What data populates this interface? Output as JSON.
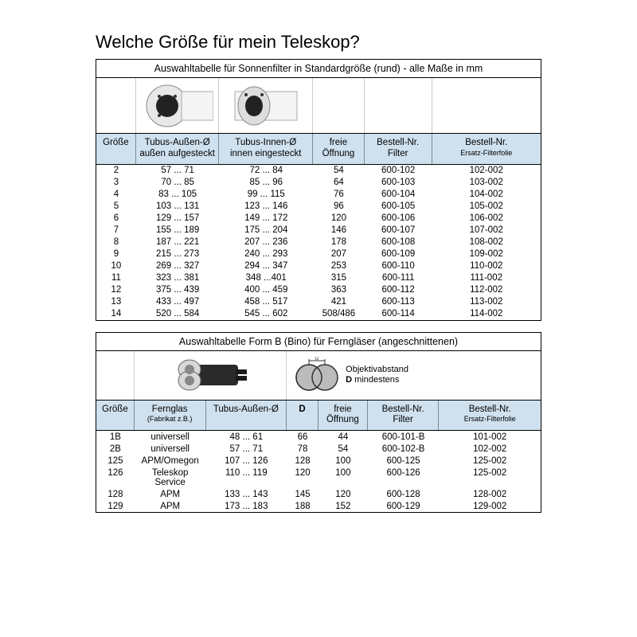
{
  "title": "Welche Größe für mein Teleskop?",
  "table1": {
    "caption": "Auswahltabelle für Sonnenfilter in Standardgröße (rund) - alle Maße in mm",
    "headers": {
      "c0": "Größe",
      "c1a": "Tubus-Außen-Ø",
      "c1b": "außen aufgesteckt",
      "c2a": "Tubus-Innen-Ø",
      "c2b": "innen eingesteckt",
      "c3a": "freie",
      "c3b": "Öffnung",
      "c4a": "Bestell-Nr.",
      "c4b": "Filter",
      "c5a": "Bestell-Nr.",
      "c5b": "Ersatz-Filterfolie"
    },
    "rows": [
      {
        "c0": "2",
        "c1": "57 ... 71",
        "c2": "72 ... 84",
        "c3": "54",
        "c4": "600-102",
        "c5": "102-002"
      },
      {
        "c0": "3",
        "c1": "70 ... 85",
        "c2": "85 ... 96",
        "c3": "64",
        "c4": "600-103",
        "c5": "103-002"
      },
      {
        "c0": "4",
        "c1": "83 ... 105",
        "c2": "99 ... 115",
        "c3": "76",
        "c4": "600-104",
        "c5": "104-002"
      },
      {
        "c0": "5",
        "c1": "103 ... 131",
        "c2": "123 ... 146",
        "c3": "96",
        "c4": "600-105",
        "c5": "105-002"
      },
      {
        "c0": "6",
        "c1": "129 ... 157",
        "c2": "149 ... 172",
        "c3": "120",
        "c4": "600-106",
        "c5": "106-002"
      },
      {
        "c0": "7",
        "c1": "155 ... 189",
        "c2": "175 ... 204",
        "c3": "146",
        "c4": "600-107",
        "c5": "107-002"
      },
      {
        "c0": "8",
        "c1": "187 ... 221",
        "c2": "207 ... 236",
        "c3": "178",
        "c4": "600-108",
        "c5": "108-002"
      },
      {
        "c0": "9",
        "c1": "215 ... 273",
        "c2": "240 ... 293",
        "c3": "207",
        "c4": "600-109",
        "c5": "109-002"
      },
      {
        "c0": "10",
        "c1": "269 ... 327",
        "c2": "294 ... 347",
        "c3": "253",
        "c4": "600-110",
        "c5": "110-002"
      },
      {
        "c0": "11",
        "c1": "323 ... 381",
        "c2": "348 ...401",
        "c3": "315",
        "c4": "600-111",
        "c5": "111-002"
      },
      {
        "c0": "12",
        "c1": "375 ... 439",
        "c2": "400 ... 459",
        "c3": "363",
        "c4": "600-112",
        "c5": "112-002"
      },
      {
        "c0": "13",
        "c1": "433 ... 497",
        "c2": "458 ... 517",
        "c3": "421",
        "c4": "600-113",
        "c5": "113-002"
      },
      {
        "c0": "14",
        "c1": "520 ... 584",
        "c2": "545 ... 602",
        "c3": "508/486",
        "c4": "600-114",
        "c5": "114-002"
      }
    ]
  },
  "table2": {
    "caption": "Auswahltabelle Form B (Bino) für Ferngläser  (angeschnittenen)",
    "diagram_label_title": "Objektivabstand",
    "diagram_label_sub": "D mindestens",
    "headers": {
      "c0": "Größe",
      "c1a": "Fernglas",
      "c1b": "(Fabrikat z.B.)",
      "c2": "Tubus-Außen-Ø",
      "c3": "D",
      "c4a": "freie",
      "c4b": "Öffnung",
      "c5a": "Bestell-Nr.",
      "c5b": "Filter",
      "c6a": "Bestell-Nr.",
      "c6b": "Ersatz-Filterfolie"
    },
    "rows": [
      {
        "c0": "1B",
        "c1": "universell",
        "c2": "48 ... 61",
        "c3": "66",
        "c4": "44",
        "c5": "600-101-B",
        "c6": "101-002"
      },
      {
        "c0": "2B",
        "c1": "universell",
        "c2": "57 ... 71",
        "c3": "78",
        "c4": "54",
        "c5": "600-102-B",
        "c6": "102-002"
      },
      {
        "c0": "125",
        "c1": "APM/Omegon",
        "c2": "107 ... 126",
        "c3": "128",
        "c4": "100",
        "c5": "600-125",
        "c6": "125-002"
      },
      {
        "c0": "126",
        "c1": "Teleskop Service",
        "c2": "110 ... 119",
        "c3": "120",
        "c4": "100",
        "c5": "600-126",
        "c6": "125-002"
      },
      {
        "c0": "128",
        "c1": "APM",
        "c2": "133 ... 143",
        "c3": "145",
        "c4": "120",
        "c5": "600-128",
        "c6": "128-002"
      },
      {
        "c0": "129",
        "c1": "APM",
        "c2": "173 ... 183",
        "c3": "188",
        "c4": "152",
        "c5": "600-129",
        "c6": "129-002"
      }
    ]
  },
  "colors": {
    "header_bg": "#cfe1ef",
    "border": "#000000",
    "text": "#000000"
  }
}
